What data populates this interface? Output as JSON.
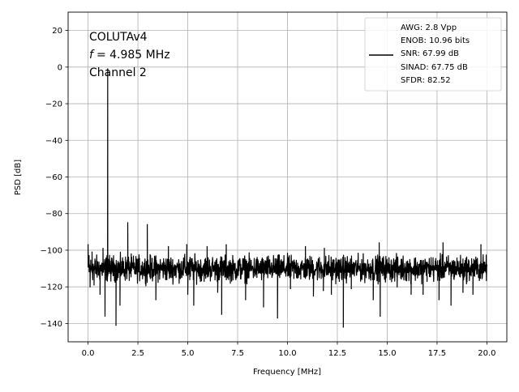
{
  "chart_data": {
    "type": "line",
    "xlabel": "Frequency [MHz]",
    "ylabel": "PSD [dB]",
    "xlim": [
      -1.0,
      21.0
    ],
    "ylim": [
      -150,
      30
    ],
    "xticks": [
      0.0,
      2.5,
      5.0,
      7.5,
      10.0,
      12.5,
      15.0,
      17.5,
      20.0
    ],
    "xtick_labels": [
      "0.0",
      "2.5",
      "5.0",
      "7.5",
      "10.0",
      "12.5",
      "15.0",
      "17.5",
      "20.0"
    ],
    "yticks": [
      20,
      0,
      -20,
      -40,
      -60,
      -80,
      -100,
      -120,
      -140
    ],
    "ytick_labels": [
      "20",
      "0",
      "−20",
      "−40",
      "−60",
      "−80",
      "−100",
      "−120",
      "−140"
    ],
    "grid": true,
    "annotation_lines": [
      "COLUTAv4",
      "= 4.985 MHz",
      "Channel 2"
    ],
    "annotation_symbol": "f",
    "legend": {
      "placement": "top-right",
      "entries": [
        "AWG: 2.8 Vpp",
        "ENOB: 10.96 bits",
        "SNR: 67.99 dB",
        "SINAD: 67.75 dB",
        "SFDR: 82.52"
      ]
    },
    "series": [
      {
        "color": "#000000",
        "noise_floor_db": -109,
        "noise_range_db": [
          -120,
          -100
        ],
        "points": [
          [
            0.0,
            -97
          ],
          [
            0.05,
            -103
          ],
          [
            0.1,
            -120
          ],
          [
            0.2,
            -101
          ],
          [
            0.3,
            -119
          ],
          [
            0.45,
            -110
          ],
          [
            0.6,
            -124
          ],
          [
            0.75,
            -99
          ],
          [
            0.85,
            -136
          ],
          [
            0.95,
            -103
          ],
          [
            0.985,
            -1
          ],
          [
            1.02,
            -105
          ],
          [
            1.1,
            -111
          ],
          [
            1.4,
            -141
          ],
          [
            1.6,
            -130
          ],
          [
            1.99,
            -85
          ],
          [
            2.1,
            -112
          ],
          [
            2.97,
            -86
          ],
          [
            3.2,
            -115
          ],
          [
            3.4,
            -127
          ],
          [
            3.95,
            -116
          ],
          [
            4.03,
            -98
          ],
          [
            4.95,
            -97
          ],
          [
            5.0,
            -124
          ],
          [
            5.1,
            -116
          ],
          [
            5.3,
            -130
          ],
          [
            5.7,
            -113
          ],
          [
            5.97,
            -98
          ],
          [
            6.5,
            -123
          ],
          [
            6.7,
            -135
          ],
          [
            6.93,
            -97
          ],
          [
            7.3,
            -111
          ],
          [
            7.9,
            -127
          ],
          [
            8.8,
            -131
          ],
          [
            9.5,
            -137
          ],
          [
            10.15,
            -121
          ],
          [
            10.9,
            -98
          ],
          [
            11.3,
            -125
          ],
          [
            11.8,
            -122
          ],
          [
            11.85,
            -99
          ],
          [
            12.2,
            -124
          ],
          [
            12.6,
            -117
          ],
          [
            12.8,
            -142
          ],
          [
            13.2,
            -121
          ],
          [
            14.3,
            -127
          ],
          [
            14.6,
            -96
          ],
          [
            14.65,
            -136
          ],
          [
            15.5,
            -120
          ],
          [
            16.2,
            -124
          ],
          [
            16.8,
            -124
          ],
          [
            17.0,
            -111
          ],
          [
            17.6,
            -127
          ],
          [
            17.8,
            -96
          ],
          [
            18.2,
            -130
          ],
          [
            18.8,
            -123
          ],
          [
            19.3,
            -124
          ],
          [
            19.7,
            -97
          ],
          [
            20.0,
            -108
          ]
        ]
      }
    ]
  }
}
